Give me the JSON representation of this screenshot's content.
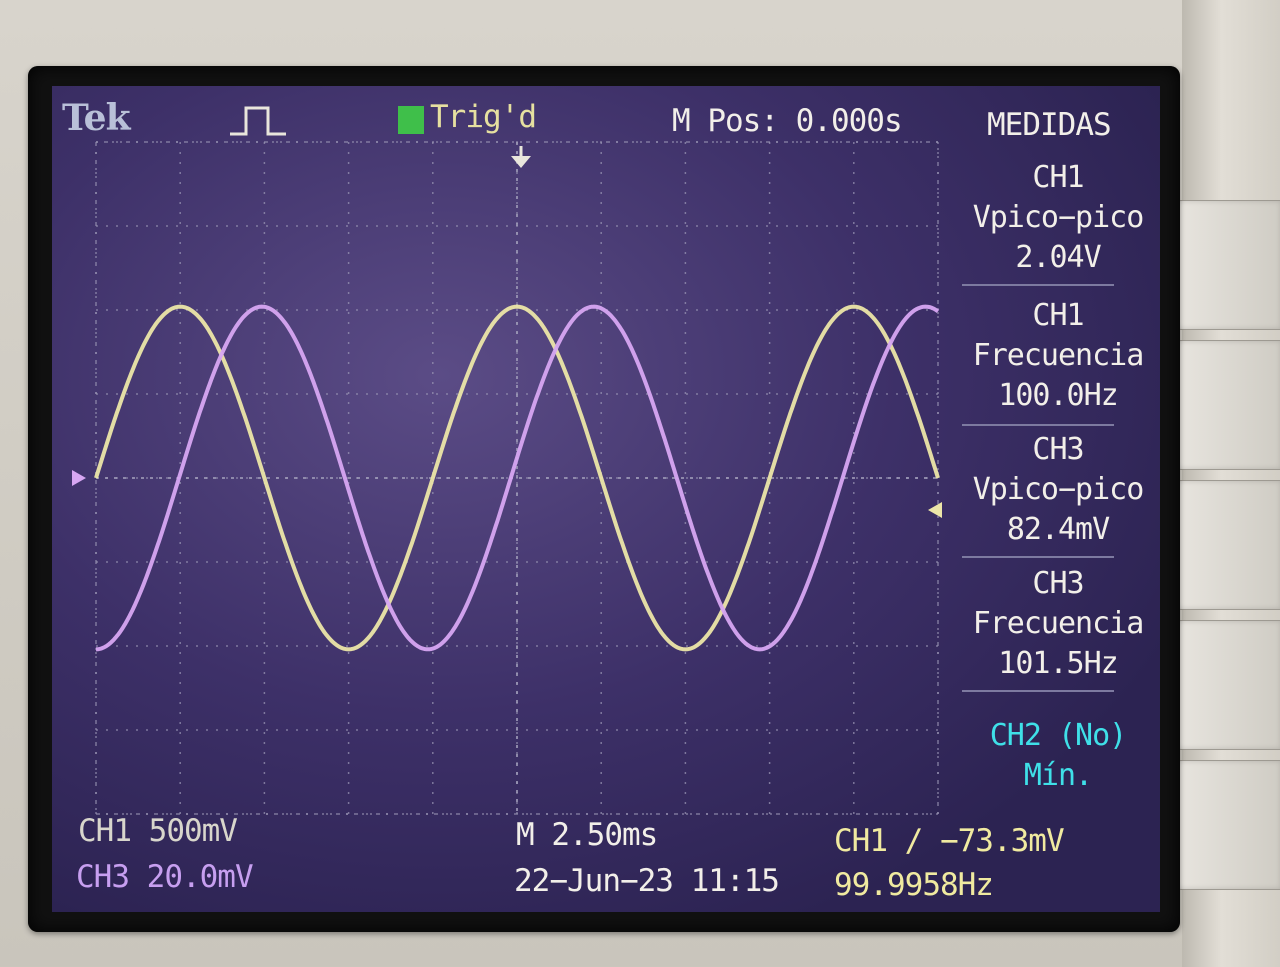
{
  "header": {
    "brand": "Tek",
    "trigger_state": "Trig'd",
    "m_pos": "M Pos: 0.000s"
  },
  "menu": {
    "title": "MEDIDAS",
    "measurements": [
      {
        "channel": "CH1",
        "label": "Vpico−pico",
        "value": "2.04V"
      },
      {
        "channel": "CH1",
        "label": "Frecuencia",
        "value": "100.0Hz"
      },
      {
        "channel": "CH3",
        "label": "Vpico−pico",
        "value": "82.4mV"
      },
      {
        "channel": "CH3",
        "label": "Frecuencia",
        "value": "101.5Hz"
      },
      {
        "channel": "CH2 (No)",
        "label": "Mín.",
        "value": ""
      }
    ]
  },
  "status": {
    "ch1_scale": "CH1  500mV",
    "ch3_scale": "CH3  20.0mV",
    "timebase": "M 2.50ms",
    "datetime": "22−Jun−23 11:15",
    "trigger": "CH1 ∕ −73.3mV",
    "trigger_freq": "99.9958Hz"
  },
  "waveforms": {
    "time_per_div_ms": 2.5,
    "divisions_x": 10,
    "divisions_y": 8,
    "ch1": {
      "color": "#ece6a8",
      "freq_hz": 100.0,
      "amplitude_div": 2.04,
      "phase_deg": 0
    },
    "ch3": {
      "color": "#d7a6f2",
      "freq_hz": 101.5,
      "amplitude_div": 2.04,
      "phase_deg": -90
    }
  },
  "colors": {
    "grid": "#9c98b6",
    "screen_bg": "#3d3068",
    "ch1": "#ece6a8",
    "ch3": "#d7a6f2",
    "ch2_menu": "#3fe0e8"
  }
}
